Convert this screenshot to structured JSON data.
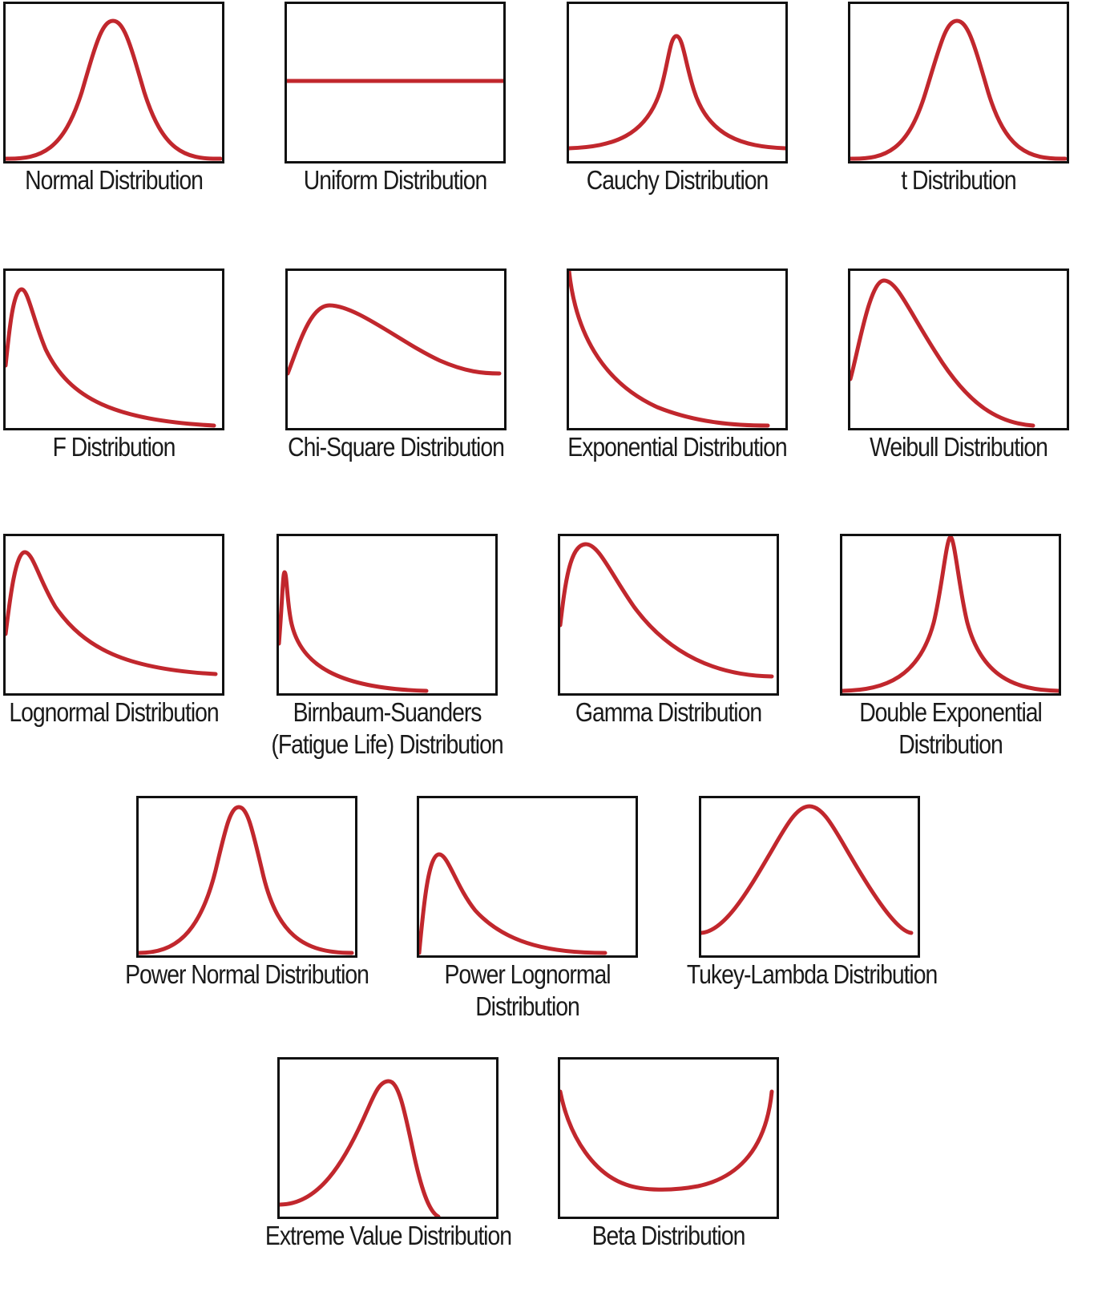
{
  "curve_color": "#c1272d",
  "frame_color": "#111111",
  "rows": [
    {
      "panels": [
        {
          "id": "normal",
          "lines": [
            "Normal Distribution"
          ],
          "curve": "bell"
        },
        {
          "id": "uniform",
          "lines": [
            "Uniform Distribution"
          ],
          "curve": "flat"
        },
        {
          "id": "cauchy",
          "lines": [
            "Cauchy Distribution"
          ],
          "curve": "sharp-peak-heavy-tails"
        },
        {
          "id": "t",
          "lines": [
            "t Distribution"
          ],
          "curve": "bell"
        }
      ]
    },
    {
      "panels": [
        {
          "id": "f",
          "lines": [
            "F Distribution"
          ],
          "curve": "right-skewed"
        },
        {
          "id": "chi-square",
          "lines": [
            "Chi-Square Distribution"
          ],
          "curve": "right-skewed"
        },
        {
          "id": "exponential",
          "lines": [
            "Exponential Distribution"
          ],
          "curve": "decay"
        },
        {
          "id": "weibull",
          "lines": [
            "Weibull Distribution"
          ],
          "curve": "right-skewed"
        }
      ]
    },
    {
      "panels": [
        {
          "id": "lognormal",
          "lines": [
            "Lognormal Distribution"
          ],
          "curve": "right-skewed"
        },
        {
          "id": "birnbaum-saunders",
          "lines": [
            "Birnbaum-Suanders",
            "(Fatigue Life) Distribution"
          ],
          "curve": "right-skewed"
        },
        {
          "id": "gamma",
          "lines": [
            "Gamma Distribution"
          ],
          "curve": "right-skewed"
        },
        {
          "id": "double-exponential",
          "lines": [
            "Double Exponential",
            "Distribution"
          ],
          "curve": "cusp"
        }
      ]
    },
    {
      "panels": [
        {
          "id": "power-normal",
          "lines": [
            "Power Normal Distribution"
          ],
          "curve": "bell"
        },
        {
          "id": "power-lognormal",
          "lines": [
            "Power Lognormal",
            "Distribution"
          ],
          "curve": "right-skewed"
        },
        {
          "id": "tukey-lambda",
          "lines": [
            "Tukey-Lambda Distribution"
          ],
          "curve": "bell"
        }
      ]
    },
    {
      "panels": [
        {
          "id": "extreme-value",
          "lines": [
            "Extreme Value Distribution"
          ],
          "curve": "left-skewed"
        },
        {
          "id": "beta",
          "lines": [
            "Beta Distribution"
          ],
          "curve": "u-shape"
        }
      ]
    }
  ]
}
